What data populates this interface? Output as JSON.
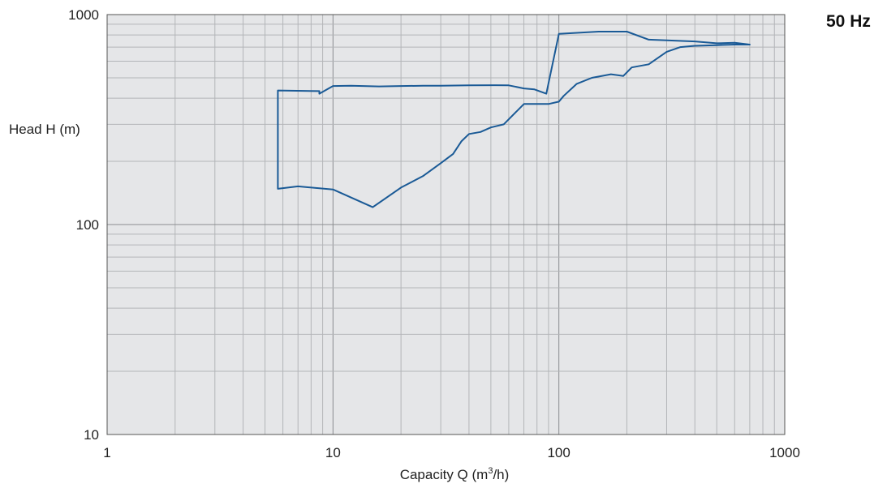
{
  "chart_data": {
    "type": "line",
    "title": "",
    "annotation": "50 Hz",
    "xlabel_prefix": "Capacity Q (m",
    "xlabel_sup": "3",
    "xlabel_suffix": "/h)",
    "ylabel": "Head H (m)",
    "xscale": "log",
    "yscale": "log",
    "xlim": [
      1,
      1000
    ],
    "ylim": [
      10,
      1000
    ],
    "xticks": [
      "1",
      "10",
      "100",
      "1000"
    ],
    "yticks": [
      "10",
      "100",
      "1000"
    ],
    "grid": true,
    "series": [
      {
        "line_color": "#1a5a96",
        "x": [
          5.7,
          5.7,
          8.7,
          8.7,
          10,
          12,
          16,
          16,
          20,
          25,
          30,
          40,
          52,
          60,
          70,
          78,
          88,
          88,
          100,
          150,
          200,
          250,
          300,
          400,
          500,
          600,
          700,
          700,
          600,
          500,
          400,
          345,
          345,
          300,
          250,
          210,
          193,
          193,
          170,
          140,
          120,
          105,
          105,
          100,
          90,
          80,
          70,
          57,
          57,
          50,
          45,
          40,
          37,
          37,
          34,
          30,
          25,
          20,
          15,
          10,
          7,
          5.7
        ],
        "y": [
          148,
          435,
          432,
          420,
          457,
          458,
          455,
          455,
          457,
          458,
          458,
          460,
          461,
          460,
          445,
          440,
          420,
          420,
          810,
          830,
          830,
          760,
          754,
          745,
          730,
          734,
          720,
          720,
          720,
          715,
          710,
          700,
          700,
          665,
          580,
          560,
          510,
          510,
          520,
          500,
          468,
          410,
          410,
          385,
          375,
          375,
          375,
          300,
          300,
          290,
          276,
          270,
          249,
          249,
          217,
          196,
          170,
          150,
          121,
          147,
          152,
          148
        ]
      }
    ]
  }
}
